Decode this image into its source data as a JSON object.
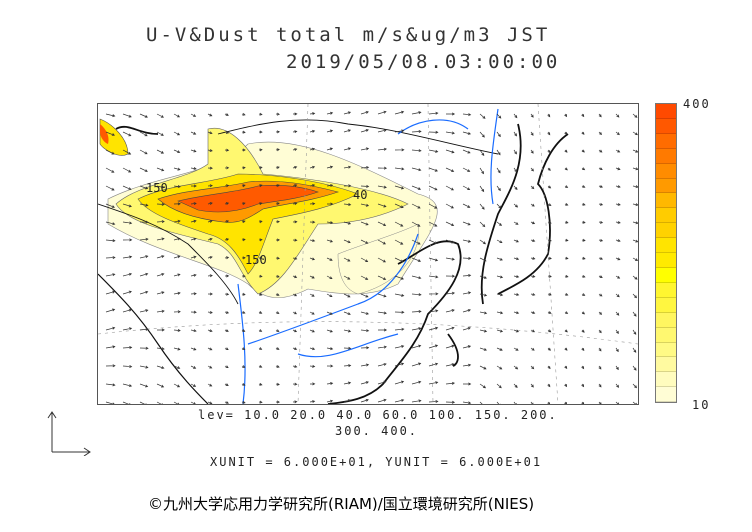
{
  "title": {
    "line1": "U-V&Dust total m/s&ug/m3 JST",
    "line2": "2019/05/08.03:00:00"
  },
  "colorbar": {
    "max_label": "400",
    "min_label": "10",
    "colors": [
      "#ff4a00",
      "#ff5800",
      "#ff6c00",
      "#ff7a00",
      "#ff8c00",
      "#ff9a00",
      "#ffb800",
      "#ffcc00",
      "#ffd200",
      "#ffe400",
      "#ffea00",
      "#ffff00",
      "#fff630",
      "#fff640",
      "#fff660",
      "#fff870",
      "#fffa85",
      "#fffaa0",
      "#fffcbe",
      "#fffdd5"
    ]
  },
  "map": {
    "contour_labels": [
      "150",
      "40",
      "150"
    ]
  },
  "levels": {
    "line1": "lev= 10.0 20.0 40.0 60.0 100. 150. 200.",
    "line2": "300. 400."
  },
  "units": "XUNIT = 6.000E+01, YUNIT = 6.000E+01",
  "footer": "©九州大学応用力学研究所(RIAM)/国立環境研究所(NIES)"
}
